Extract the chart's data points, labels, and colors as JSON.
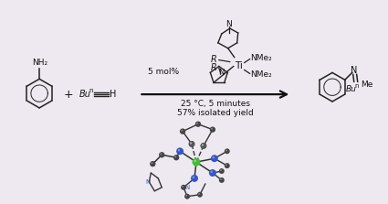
{
  "background_color": "#eee9f0",
  "arrow_color": "#111111",
  "text_color": "#111111",
  "bond_color": "#222222",
  "blue_color": "#3355cc",
  "green_color": "#44aa33",
  "catalyst_mol_pct": "5 mol%",
  "conditions_line1": "25 °C, 5 minutes",
  "conditions_line2": "57% isolated yield",
  "plus_sign": "+",
  "nh2": "NH₂",
  "bu_n": "Bu",
  "superscript_n": "n",
  "alkyne_h": "H",
  "R_label": "R",
  "Ti_label": "Ti",
  "NMe2_1": "NMe₂",
  "NMe2_2": "NMe₂",
  "N_label": "N",
  "product_N": "N",
  "product_Bu": "Bu",
  "product_n": "n",
  "product_Me": "Me"
}
